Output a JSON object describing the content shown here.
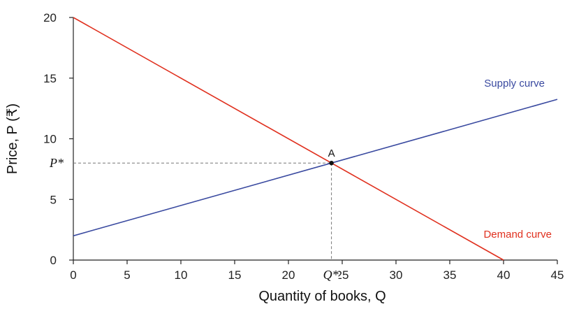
{
  "chart_data": {
    "type": "line",
    "xlabel": "Quantity of books, Q",
    "ylabel": "Price, P (₹)",
    "xlim": [
      0,
      45
    ],
    "ylim": [
      0,
      20
    ],
    "x_ticks": [
      0,
      5,
      10,
      15,
      20,
      25,
      30,
      35,
      40,
      45
    ],
    "y_ticks": [
      0,
      5,
      10,
      15,
      20
    ],
    "grid": false,
    "series": [
      {
        "name": "Demand curve",
        "color": "#e0301e",
        "x": [
          0,
          40
        ],
        "y": [
          20,
          0
        ]
      },
      {
        "name": "Supply curve",
        "color": "#3a4aa0",
        "x": [
          0,
          45
        ],
        "y": [
          2,
          13.25
        ]
      }
    ],
    "equilibrium": {
      "label": "A",
      "x": 24,
      "y": 8,
      "x_marker_label": "Q*",
      "y_marker_label": "P*"
    }
  }
}
